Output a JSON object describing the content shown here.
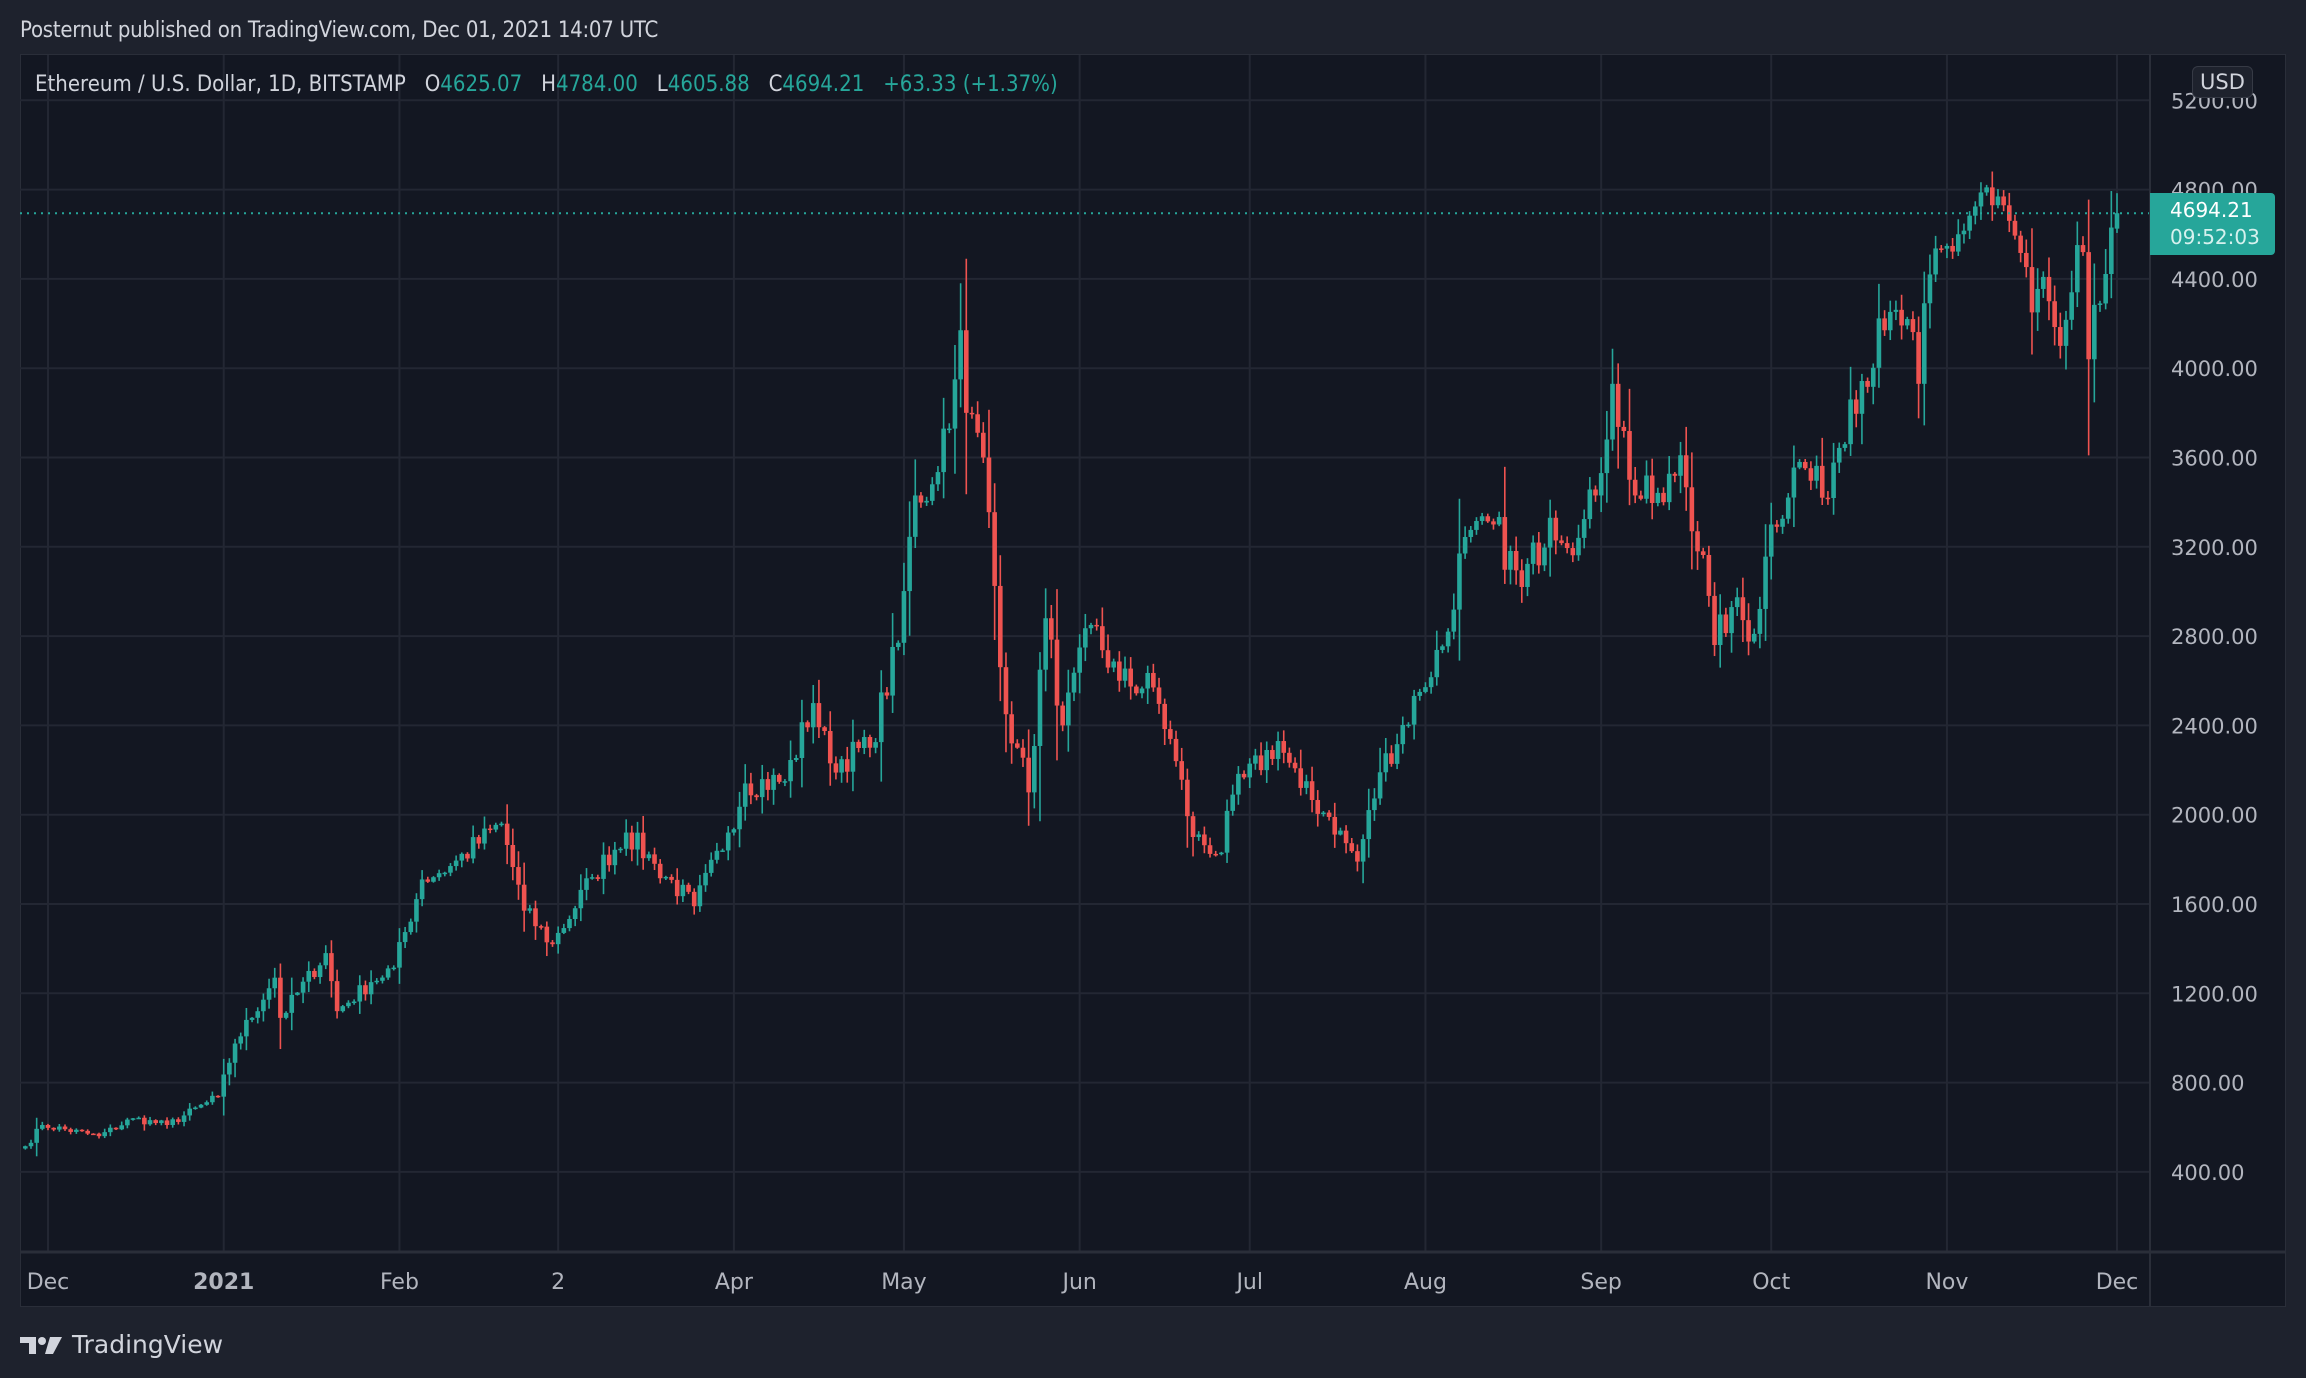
{
  "header": {
    "published_line": "Posternut published on TradingView.com, Dec 01, 2021 14:07 UTC"
  },
  "legend": {
    "symbol": "Ethereum / U.S. Dollar, 1D, BITSTAMP",
    "open_label": "O",
    "open": "4625.07",
    "high_label": "H",
    "high": "4784.00",
    "low_label": "L",
    "low": "4605.88",
    "close_label": "C",
    "close": "4694.21",
    "change": "+63.33 (+1.37%)"
  },
  "price_axis": {
    "currency": "USD",
    "labels": [
      "5200.00",
      "4800.00",
      "4400.00",
      "4000.00",
      "3600.00",
      "3200.00",
      "2800.00",
      "2400.00",
      "2000.00",
      "1600.00",
      "1200.00",
      "800.00",
      "400.00"
    ],
    "last_price": "4694.21",
    "countdown": "09:52:03"
  },
  "time_axis": {
    "labels": [
      "Dec",
      "2021",
      "Feb",
      "2",
      "Apr",
      "May",
      "Jun",
      "Jul",
      "Aug",
      "Sep",
      "Oct",
      "Nov",
      "Dec"
    ]
  },
  "footer": {
    "brand": "TradingView"
  },
  "colors": {
    "up": "#26a69a",
    "down": "#ef5350",
    "pane_bg": "#131722",
    "frame_bg": "#1e222d",
    "grid": "#232733",
    "text": "#d1d4dc",
    "axis_text": "#b2b5be"
  },
  "chart_data": {
    "type": "candlestick",
    "title": "Ethereum / U.S. Dollar, 1D, BITSTAMP",
    "xlabel": "",
    "ylabel": "USD",
    "ylim": [
      0,
      5400
    ],
    "y_ticks": [
      400,
      800,
      1200,
      1600,
      2000,
      2400,
      2800,
      3200,
      3600,
      4000,
      4400,
      4800,
      5200
    ],
    "x_ticks": [
      {
        "label": "Dec",
        "date": "2020-12-01"
      },
      {
        "label": "2021",
        "date": "2021-01-01"
      },
      {
        "label": "Feb",
        "date": "2021-02-01"
      },
      {
        "label": "2",
        "date": "2021-03-01"
      },
      {
        "label": "Apr",
        "date": "2021-04-01"
      },
      {
        "label": "May",
        "date": "2021-05-01"
      },
      {
        "label": "Jun",
        "date": "2021-06-01"
      },
      {
        "label": "Jul",
        "date": "2021-07-01"
      },
      {
        "label": "Aug",
        "date": "2021-08-01"
      },
      {
        "label": "Sep",
        "date": "2021-09-01"
      },
      {
        "label": "Oct",
        "date": "2021-10-01"
      },
      {
        "label": "Nov",
        "date": "2021-11-01"
      },
      {
        "label": "Dec",
        "date": "2021-12-01"
      }
    ],
    "grid": true,
    "start_date": "2020-11-27",
    "last_price": 4694.21,
    "close_keypoints": [
      [
        "2020-11-27",
        515
      ],
      [
        "2020-11-30",
        610
      ],
      [
        "2020-12-10",
        560
      ],
      [
        "2020-12-16",
        640
      ],
      [
        "2020-12-22",
        610
      ],
      [
        "2020-12-31",
        737
      ],
      [
        "2021-01-03",
        975
      ],
      [
        "2021-01-10",
        1270
      ],
      [
        "2021-01-11",
        1090
      ],
      [
        "2021-01-19",
        1380
      ],
      [
        "2021-01-21",
        1120
      ],
      [
        "2021-01-27",
        1250
      ],
      [
        "2021-01-31",
        1315
      ],
      [
        "2021-02-05",
        1710
      ],
      [
        "2021-02-10",
        1770
      ],
      [
        "2021-02-19",
        1960
      ],
      [
        "2021-02-23",
        1570
      ],
      [
        "2021-02-28",
        1420
      ],
      [
        "2021-03-07",
        1720
      ],
      [
        "2021-03-13",
        1920
      ],
      [
        "2021-03-18",
        1780
      ],
      [
        "2021-03-25",
        1590
      ],
      [
        "2021-03-31",
        1920
      ],
      [
        "2021-04-03",
        2140
      ],
      [
        "2021-04-10",
        2150
      ],
      [
        "2021-04-15",
        2500
      ],
      [
        "2021-04-18",
        2230
      ],
      [
        "2021-04-25",
        2300
      ],
      [
        "2021-04-30",
        2770
      ],
      [
        "2021-05-03",
        3430
      ],
      [
        "2021-05-06",
        3480
      ],
      [
        "2021-05-10",
        3950
      ],
      [
        "2021-05-11",
        4170
      ],
      [
        "2021-05-12",
        3800
      ],
      [
        "2021-05-15",
        3600
      ],
      [
        "2021-05-19",
        2450
      ],
      [
        "2021-05-21",
        2300
      ],
      [
        "2021-05-23",
        2100
      ],
      [
        "2021-05-26",
        2880
      ],
      [
        "2021-05-29",
        2400
      ],
      [
        "2021-06-03",
        2850
      ],
      [
        "2021-06-08",
        2600
      ],
      [
        "2021-06-14",
        2570
      ],
      [
        "2021-06-18",
        2240
      ],
      [
        "2021-06-21",
        1900
      ],
      [
        "2021-06-26",
        1830
      ],
      [
        "2021-06-28",
        2090
      ],
      [
        "2021-07-06",
        2330
      ],
      [
        "2021-07-10",
        2120
      ],
      [
        "2021-07-15",
        1990
      ],
      [
        "2021-07-20",
        1790
      ],
      [
        "2021-07-24",
        2190
      ],
      [
        "2021-07-31",
        2550
      ],
      [
        "2021-08-05",
        2820
      ],
      [
        "2021-08-07",
        3170
      ],
      [
        "2021-08-13",
        3300
      ],
      [
        "2021-08-18",
        3020
      ],
      [
        "2021-08-23",
        3330
      ],
      [
        "2021-08-28",
        3240
      ],
      [
        "2021-08-31",
        3430
      ],
      [
        "2021-09-03",
        3930
      ],
      [
        "2021-09-07",
        3430
      ],
      [
        "2021-09-12",
        3400
      ],
      [
        "2021-09-15",
        3610
      ],
      [
        "2021-09-20",
        2980
      ],
      [
        "2021-09-21",
        2760
      ],
      [
        "2021-09-24",
        2930
      ],
      [
        "2021-09-28",
        2810
      ],
      [
        "2021-10-01",
        3300
      ],
      [
        "2021-10-06",
        3580
      ],
      [
        "2021-10-10",
        3420
      ],
      [
        "2021-10-15",
        3860
      ],
      [
        "2021-10-21",
        4170
      ],
      [
        "2021-10-25",
        4220
      ],
      [
        "2021-10-27",
        3930
      ],
      [
        "2021-10-29",
        4420
      ],
      [
        "2021-11-03",
        4600
      ],
      [
        "2021-11-08",
        4810
      ],
      [
        "2021-11-09",
        4730
      ],
      [
        "2021-11-12",
        4660
      ],
      [
        "2021-11-16",
        4250
      ],
      [
        "2021-11-19",
        4300
      ],
      [
        "2021-11-21",
        4100
      ],
      [
        "2021-11-23",
        4340
      ],
      [
        "2021-11-25",
        4520
      ],
      [
        "2021-11-26",
        4040
      ],
      [
        "2021-11-28",
        4290
      ],
      [
        "2021-11-30",
        4630
      ],
      [
        "2021-12-01",
        4694.21
      ]
    ],
    "last_candle": {
      "date": "2021-12-01",
      "open": 4625.07,
      "high": 4784.0,
      "low": 4605.88,
      "close": 4694.21
    }
  }
}
